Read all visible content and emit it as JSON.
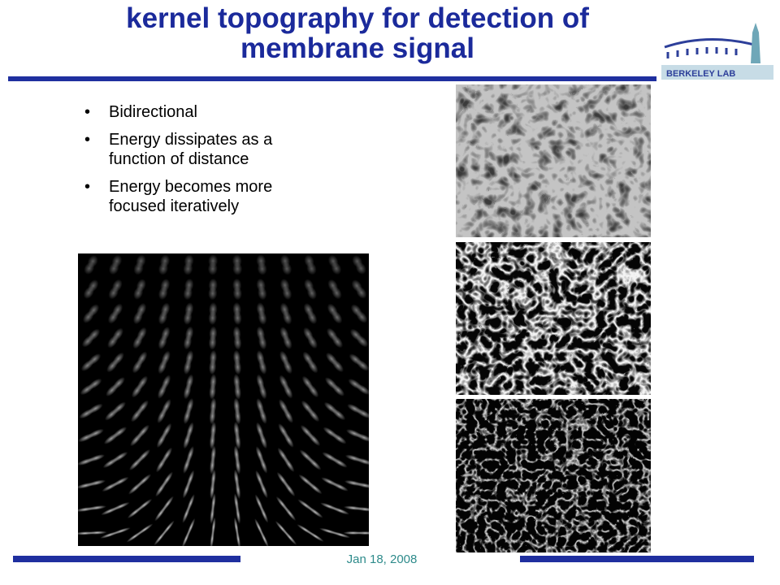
{
  "title": [
    "kernel topography for detection of",
    "membrane signal"
  ],
  "bullets": [
    "Bidirectional",
    "Energy dissipates as a function of distance",
    "Energy becomes more focused iteratively"
  ],
  "logo": {
    "text": "BERKELEY LAB"
  },
  "footer": {
    "date": "Jan 18,  2008"
  }
}
